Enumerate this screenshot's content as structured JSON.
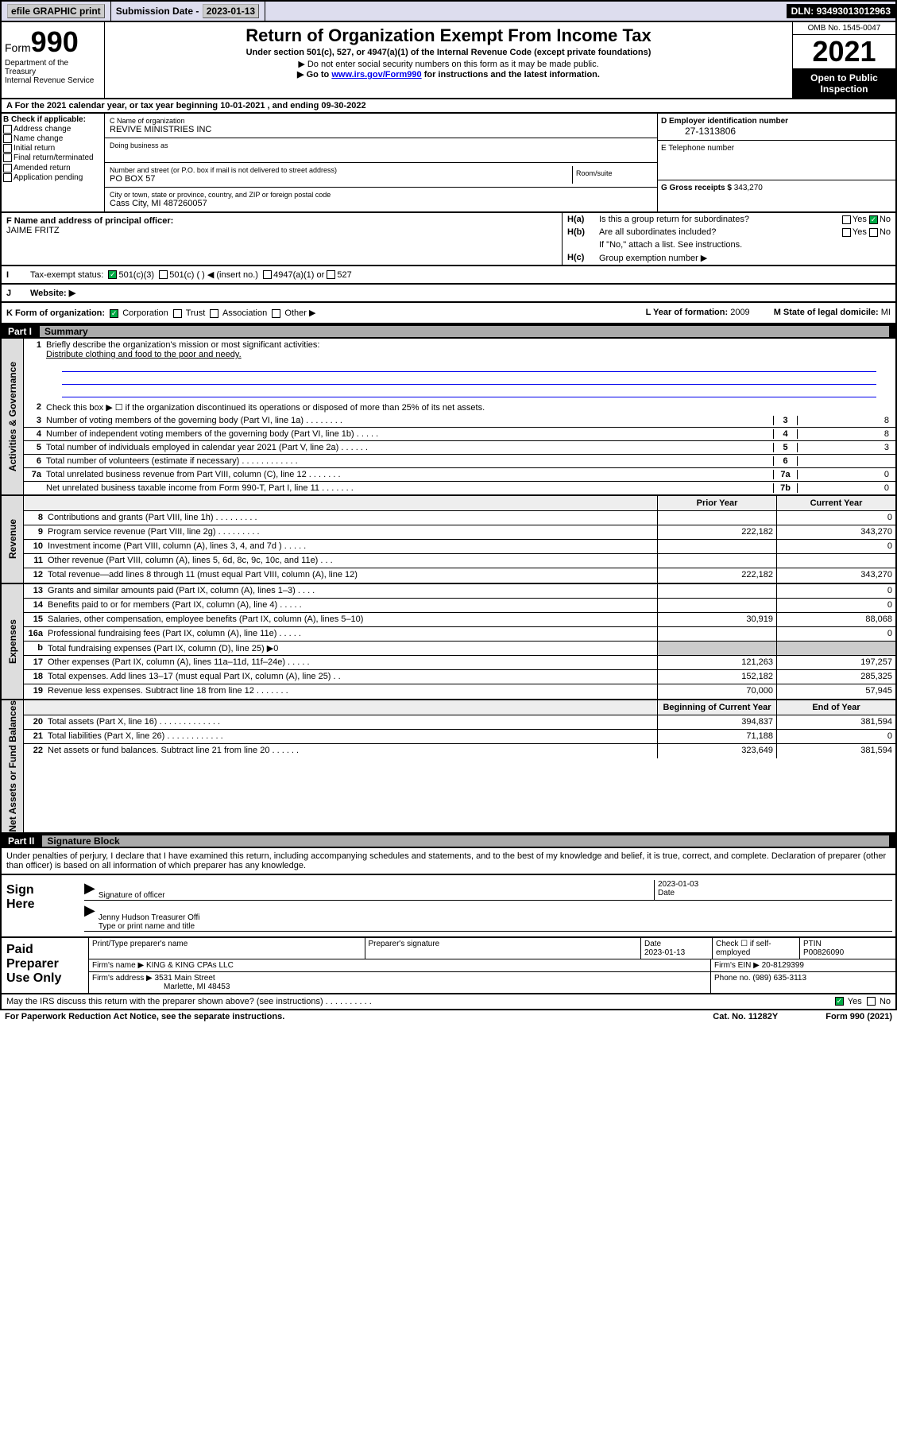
{
  "topbar": {
    "efile": "efile GRAPHIC print",
    "subdate_lbl": "Submission Date - ",
    "subdate": "2023-01-13",
    "dln_lbl": "DLN: ",
    "dln": "93493013012963"
  },
  "header": {
    "form_lbl": "Form",
    "form_num": "990",
    "dept": "Department of the Treasury",
    "irs": "Internal Revenue Service",
    "title": "Return of Organization Exempt From Income Tax",
    "sub1": "Under section 501(c), 527, or 4947(a)(1) of the Internal Revenue Code (except private foundations)",
    "sub2": "▶ Do not enter social security numbers on this form as it may be made public.",
    "sub3_pre": "▶ Go to ",
    "sub3_link": "www.irs.gov/Form990",
    "sub3_post": " for instructions and the latest information.",
    "omb": "OMB No. 1545-0047",
    "year": "2021",
    "open": "Open to Public Inspection"
  },
  "row_a": "A For the 2021 calendar year, or tax year beginning 10-01-2021   , and ending 09-30-2022",
  "b": {
    "hdr": "B Check if applicable:",
    "opts": [
      "Address change",
      "Name change",
      "Initial return",
      "Final return/terminated",
      "Amended return",
      "Application pending"
    ]
  },
  "c": {
    "name_lbl": "C Name of organization",
    "name": "REVIVE MINISTRIES INC",
    "dba_lbl": "Doing business as",
    "addr_lbl": "Number and street (or P.O. box if mail is not delivered to street address)",
    "addr": "PO BOX 57",
    "room_lbl": "Room/suite",
    "city_lbl": "City or town, state or province, country, and ZIP or foreign postal code",
    "city": "Cass City, MI  487260057"
  },
  "d": {
    "ein_lbl": "D Employer identification number",
    "ein": "27-1313806",
    "tel_lbl": "E Telephone number",
    "gr_lbl": "G Gross receipts $ ",
    "gr": "343,270"
  },
  "f": {
    "lbl": "F Name and address of principal officer:",
    "val": "JAIME FRITZ"
  },
  "h": {
    "a_lbl": "Is this a group return for subordinates?",
    "a_yes": "Yes",
    "a_no": "No",
    "b_lbl": "Are all subordinates included?",
    "b_note": "If \"No,\" attach a list. See instructions.",
    "c_lbl": "Group exemption number ▶"
  },
  "i": {
    "lbl": "Tax-exempt status:",
    "o1": "501(c)(3)",
    "o2": "501(c) (   ) ◀ (insert no.)",
    "o3": "4947(a)(1) or",
    "o4": "527"
  },
  "j": {
    "lbl": "Website: ▶"
  },
  "k": {
    "lbl": "K Form of organization:",
    "o1": "Corporation",
    "o2": "Trust",
    "o3": "Association",
    "o4": "Other ▶",
    "l_lbl": "L Year of formation: ",
    "l_val": "2009",
    "m_lbl": "M State of legal domicile: ",
    "m_val": "MI"
  },
  "part1": {
    "num": "Part I",
    "title": "Summary"
  },
  "summary": {
    "l1_lbl": "Briefly describe the organization's mission or most significant activities:",
    "l1_val": "Distribute clothing and food to the poor and needy.",
    "l2": "Check this box ▶ ☐ if the organization discontinued its operations or disposed of more than 25% of its net assets.",
    "l3": "Number of voting members of the governing body (Part VI, line 1a)   .   .   .   .   .   .   .   .",
    "l3v": "8",
    "l4": "Number of independent voting members of the governing body (Part VI, line 1b)   .   .   .   .   .",
    "l4v": "8",
    "l5": "Total number of individuals employed in calendar year 2021 (Part V, line 2a)   .   .   .   .   .   .",
    "l5v": "3",
    "l6": "Total number of volunteers (estimate if necessary)   .   .   .   .   .   .   .   .   .   .   .   .",
    "l6v": "",
    "l7a": "Total unrelated business revenue from Part VIII, column (C), line 12   .   .   .   .   .   .   .",
    "l7av": "0",
    "l7b": "Net unrelated business taxable income from Form 990-T, Part I, line 11   .   .   .   .   .   .   .",
    "l7bv": "0"
  },
  "fin": {
    "col1": "Prior Year",
    "col2": "Current Year",
    "rows": [
      {
        "n": "8",
        "t": "Contributions and grants (Part VIII, line 1h)   .   .   .   .   .   .   .   .   .",
        "p": "",
        "c": "0"
      },
      {
        "n": "9",
        "t": "Program service revenue (Part VIII, line 2g)   .   .   .   .   .   .   .   .   .",
        "p": "222,182",
        "c": "343,270"
      },
      {
        "n": "10",
        "t": "Investment income (Part VIII, column (A), lines 3, 4, and 7d )   .   .   .   .   .",
        "p": "",
        "c": "0"
      },
      {
        "n": "11",
        "t": "Other revenue (Part VIII, column (A), lines 5, 6d, 8c, 9c, 10c, and 11e)   .   .   .",
        "p": "",
        "c": ""
      },
      {
        "n": "12",
        "t": "Total revenue—add lines 8 through 11 (must equal Part VIII, column (A), line 12)",
        "p": "222,182",
        "c": "343,270"
      }
    ],
    "exp_rows": [
      {
        "n": "13",
        "t": "Grants and similar amounts paid (Part IX, column (A), lines 1–3)   .   .   .   .",
        "p": "",
        "c": "0"
      },
      {
        "n": "14",
        "t": "Benefits paid to or for members (Part IX, column (A), line 4)   .   .   .   .   .",
        "p": "",
        "c": "0"
      },
      {
        "n": "15",
        "t": "Salaries, other compensation, employee benefits (Part IX, column (A), lines 5–10)",
        "p": "30,919",
        "c": "88,068"
      },
      {
        "n": "16a",
        "t": "Professional fundraising fees (Part IX, column (A), line 11e)   .   .   .   .   .",
        "p": "",
        "c": "0"
      },
      {
        "n": "b",
        "t": "Total fundraising expenses (Part IX, column (D), line 25) ▶0",
        "p": "shade",
        "c": "shade"
      },
      {
        "n": "17",
        "t": "Other expenses (Part IX, column (A), lines 11a–11d, 11f–24e)   .   .   .   .   .",
        "p": "121,263",
        "c": "197,257"
      },
      {
        "n": "18",
        "t": "Total expenses. Add lines 13–17 (must equal Part IX, column (A), line 25)   .   .",
        "p": "152,182",
        "c": "285,325"
      },
      {
        "n": "19",
        "t": "Revenue less expenses. Subtract line 18 from line 12   .   .   .   .   .   .   .",
        "p": "70,000",
        "c": "57,945"
      }
    ],
    "na_hdr1": "Beginning of Current Year",
    "na_hdr2": "End of Year",
    "na_rows": [
      {
        "n": "20",
        "t": "Total assets (Part X, line 16)   .   .   .   .   .   .   .   .   .   .   .   .   .",
        "p": "394,837",
        "c": "381,594"
      },
      {
        "n": "21",
        "t": "Total liabilities (Part X, line 26)   .   .   .   .   .   .   .   .   .   .   .   .",
        "p": "71,188",
        "c": "0"
      },
      {
        "n": "22",
        "t": "Net assets or fund balances. Subtract line 21 from line 20   .   .   .   .   .   .",
        "p": "323,649",
        "c": "381,594"
      }
    ]
  },
  "part2": {
    "num": "Part II",
    "title": "Signature Block"
  },
  "sig": {
    "intro": "Under penalties of perjury, I declare that I have examined this return, including accompanying schedules and statements, and to the best of my knowledge and belief, it is true, correct, and complete. Declaration of preparer (other than officer) is based on all information of which preparer has any knowledge.",
    "here": "Sign Here",
    "off_lbl": "Signature of officer",
    "date_lbl": "Date",
    "date": "2023-01-03",
    "name": "Jenny Hudson Treasurer Offi",
    "name_lbl": "Type or print name and title"
  },
  "prep": {
    "here": "Paid Preparer Use Only",
    "pt_lbl": "Print/Type preparer's name",
    "ps_lbl": "Preparer's signature",
    "pd_lbl": "Date",
    "pd": "2023-01-13",
    "se_lbl": "Check ☐ if self-employed",
    "ptin_lbl": "PTIN",
    "ptin": "P00826090",
    "firm_lbl": "Firm's name    ▶ ",
    "firm": "KING & KING CPAs LLC",
    "ein_lbl": "Firm's EIN ▶ ",
    "ein": "20-8129399",
    "addr_lbl": "Firm's address ▶ ",
    "addr1": "3531 Main Street",
    "addr2": "Marlette, MI  48453",
    "ph_lbl": "Phone no. ",
    "ph": "(989) 635-3113"
  },
  "discuss": {
    "txt": "May the IRS discuss this return with the preparer shown above? (see instructions)   .   .   .   .   .   .   .   .   .   .",
    "yes": "Yes",
    "no": "No"
  },
  "footer": {
    "l": "For Paperwork Reduction Act Notice, see the separate instructions.",
    "m": "Cat. No. 11282Y",
    "r": "Form 990 (2021)"
  },
  "tabs": {
    "ag": "Activities & Governance",
    "rev": "Revenue",
    "exp": "Expenses",
    "na": "Net Assets or Fund Balances"
  }
}
